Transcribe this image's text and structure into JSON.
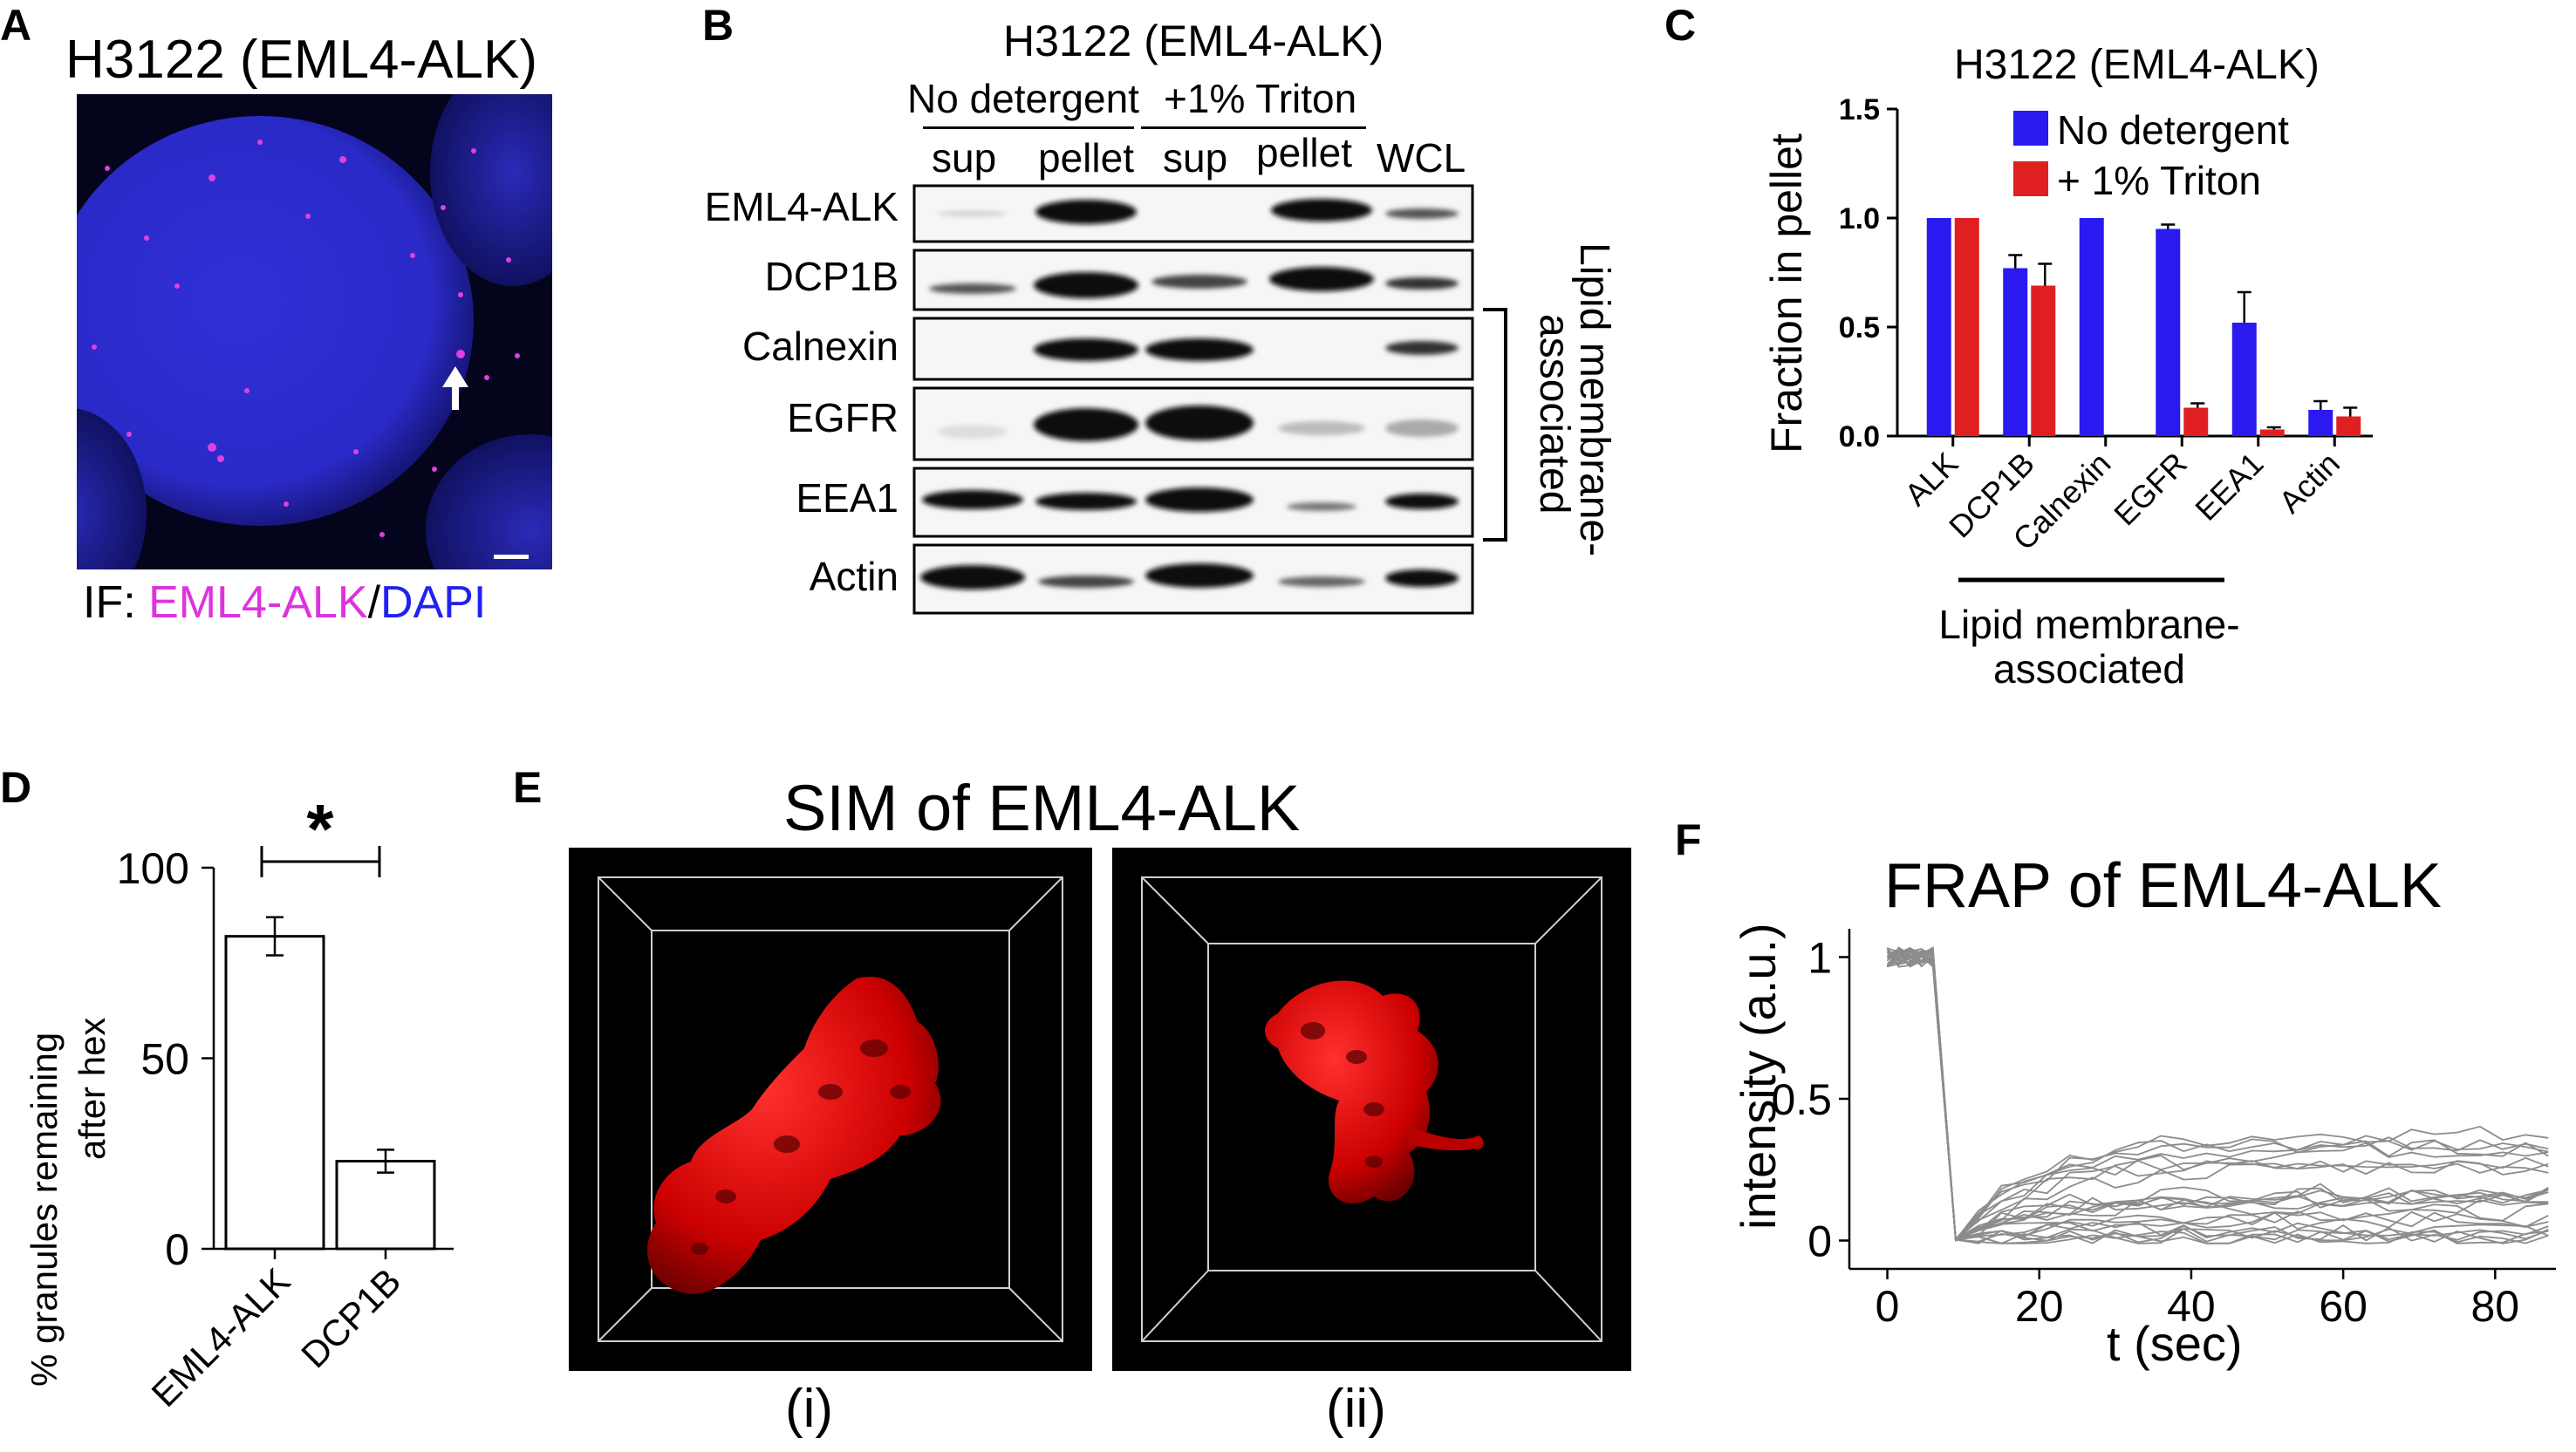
{
  "panels": {
    "A": {
      "letter": "A",
      "title": "H3122 (EML4-ALK)",
      "caption_prefix": "IF: ",
      "caption_a": "EML4-ALK",
      "caption_sep": "/",
      "caption_b": "DAPI",
      "colors": {
        "a": "#dd33dd",
        "b": "#2222ee"
      }
    },
    "B": {
      "letter": "B",
      "title": "H3122 (EML4-ALK)",
      "groups": [
        "No detergent",
        "+1% Triton"
      ],
      "lanes": [
        "sup",
        "pellet",
        "sup",
        "pellet",
        "WCL"
      ],
      "rows": [
        "EML4-ALK",
        "DCP1B",
        "Calnexin",
        "EGFR",
        "EEA1",
        "Actin"
      ],
      "bracket_label_1": "Lipid membrane-",
      "bracket_label_2": "associated"
    },
    "C": {
      "letter": "C",
      "note": "Lipid membrane-",
      "note2": "associated"
    },
    "D": {
      "letter": "D",
      "significance": "*"
    },
    "E": {
      "letter": "E",
      "title": "SIM of EML4-ALK",
      "labels": [
        "(i)",
        "(ii)"
      ]
    },
    "F": {
      "letter": "F"
    }
  },
  "chart_data": [
    {
      "id": "C",
      "type": "bar",
      "title": "H3122 (EML4-ALK)",
      "xlabel": "",
      "ylabel": "Fraction in pellet",
      "ylim": [
        0,
        1.5
      ],
      "yticks": [
        "0.0",
        "0.5",
        "1.0",
        "1.5"
      ],
      "categories": [
        "ALK",
        "DCP1B",
        "Calnexin",
        "EGFR",
        "EEA1",
        "Actin"
      ],
      "series": [
        {
          "name": "No detergent",
          "color": "#2a1af0",
          "values": [
            1.0,
            0.77,
            1.0,
            0.95,
            0.52,
            0.12
          ],
          "err": [
            0.0,
            0.06,
            0.0,
            0.02,
            0.14,
            0.04
          ]
        },
        {
          "name": "+ 1% Triton",
          "color": "#e02020",
          "values": [
            1.0,
            0.69,
            0.0,
            0.13,
            0.03,
            0.09
          ],
          "err": [
            0.0,
            0.1,
            0.0,
            0.02,
            0.01,
            0.04
          ]
        }
      ],
      "legend": "top-right"
    },
    {
      "id": "D",
      "type": "bar",
      "title": "",
      "ylabel_1": "% granules remaining",
      "ylabel_2": "after hex",
      "ylim": [
        0,
        100
      ],
      "yticks": [
        "0",
        "50",
        "100"
      ],
      "categories": [
        "EML4-ALK",
        "DCP1B"
      ],
      "values": [
        82,
        23
      ],
      "err": [
        5,
        3
      ]
    },
    {
      "id": "F",
      "type": "line",
      "title": "FRAP of EML4-ALK",
      "xlabel": "t (sec)",
      "ylabel": "intensity (a.u.)",
      "xlim": [
        -5,
        88
      ],
      "ylim": [
        -0.1,
        1.1
      ],
      "xticks": [
        "0",
        "20",
        "40",
        "60",
        "80"
      ],
      "yticks": [
        "0",
        "0.5",
        "1"
      ],
      "bleach_time": 9,
      "pre_bleach_level": 1.0,
      "recovery_range": [
        0.0,
        0.4
      ],
      "n_traces": 24,
      "line_color": "#8c8c8c"
    }
  ]
}
